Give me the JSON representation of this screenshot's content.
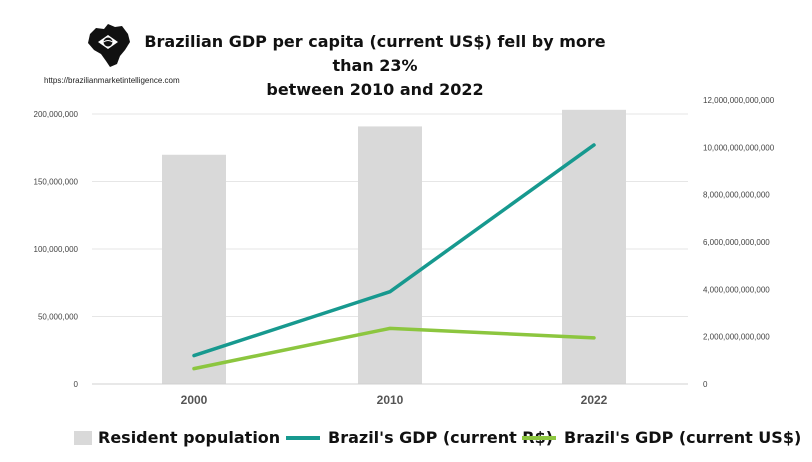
{
  "header": {
    "title_line1": "Brazilian GDP per capita (current US$) fell by more than 23%",
    "title_line2": "between 2010 and 2022",
    "url": "https://brazilianmarketintelligence.com",
    "logo_icon": "brazil-map-logo-icon"
  },
  "colors": {
    "bars": "#d9d9d9",
    "gdp_brl": "#17998f",
    "gdp_usd": "#8cc63f",
    "grid": "#e6e6e6"
  },
  "chart_data": {
    "type": "bar",
    "title": "Brazilian GDP per capita (current US$) fell by more than 23% between 2010 and 2022",
    "categories": [
      "2000",
      "2010",
      "2022"
    ],
    "grid": true,
    "legend_position": "bottom",
    "y_left": {
      "min": 0,
      "max": 200000000,
      "ticks": [
        0,
        50000000,
        100000000,
        150000000,
        200000000
      ],
      "tick_labels": [
        "0",
        "50,000,000",
        "100,000,000",
        "150,000,000",
        "200,000,000"
      ]
    },
    "y_right": {
      "min": 0,
      "max": 12000000000000,
      "ticks": [
        0,
        2000000000000,
        4000000000000,
        6000000000000,
        8000000000000,
        10000000000000,
        12000000000000
      ],
      "tick_labels": [
        "0",
        "2,000,000,000,000",
        "4,000,000,000,000",
        "6,000,000,000,000",
        "8,000,000,000,000",
        "10,000,000,000,000",
        "12,000,000,000,000"
      ]
    },
    "series": [
      {
        "name": "Resident population",
        "type": "bar",
        "axis": "left",
        "values": [
          169800000,
          190800000,
          203100000
        ]
      },
      {
        "name": "Brazil's GDP (current R$)",
        "type": "line",
        "axis": "right",
        "values": [
          1200000000000,
          3900000000000,
          10100000000000
        ]
      },
      {
        "name": "Brazil's GDP (current US$)",
        "type": "line",
        "axis": "right",
        "values": [
          650000000000,
          2350000000000,
          1950000000000
        ]
      }
    ]
  }
}
